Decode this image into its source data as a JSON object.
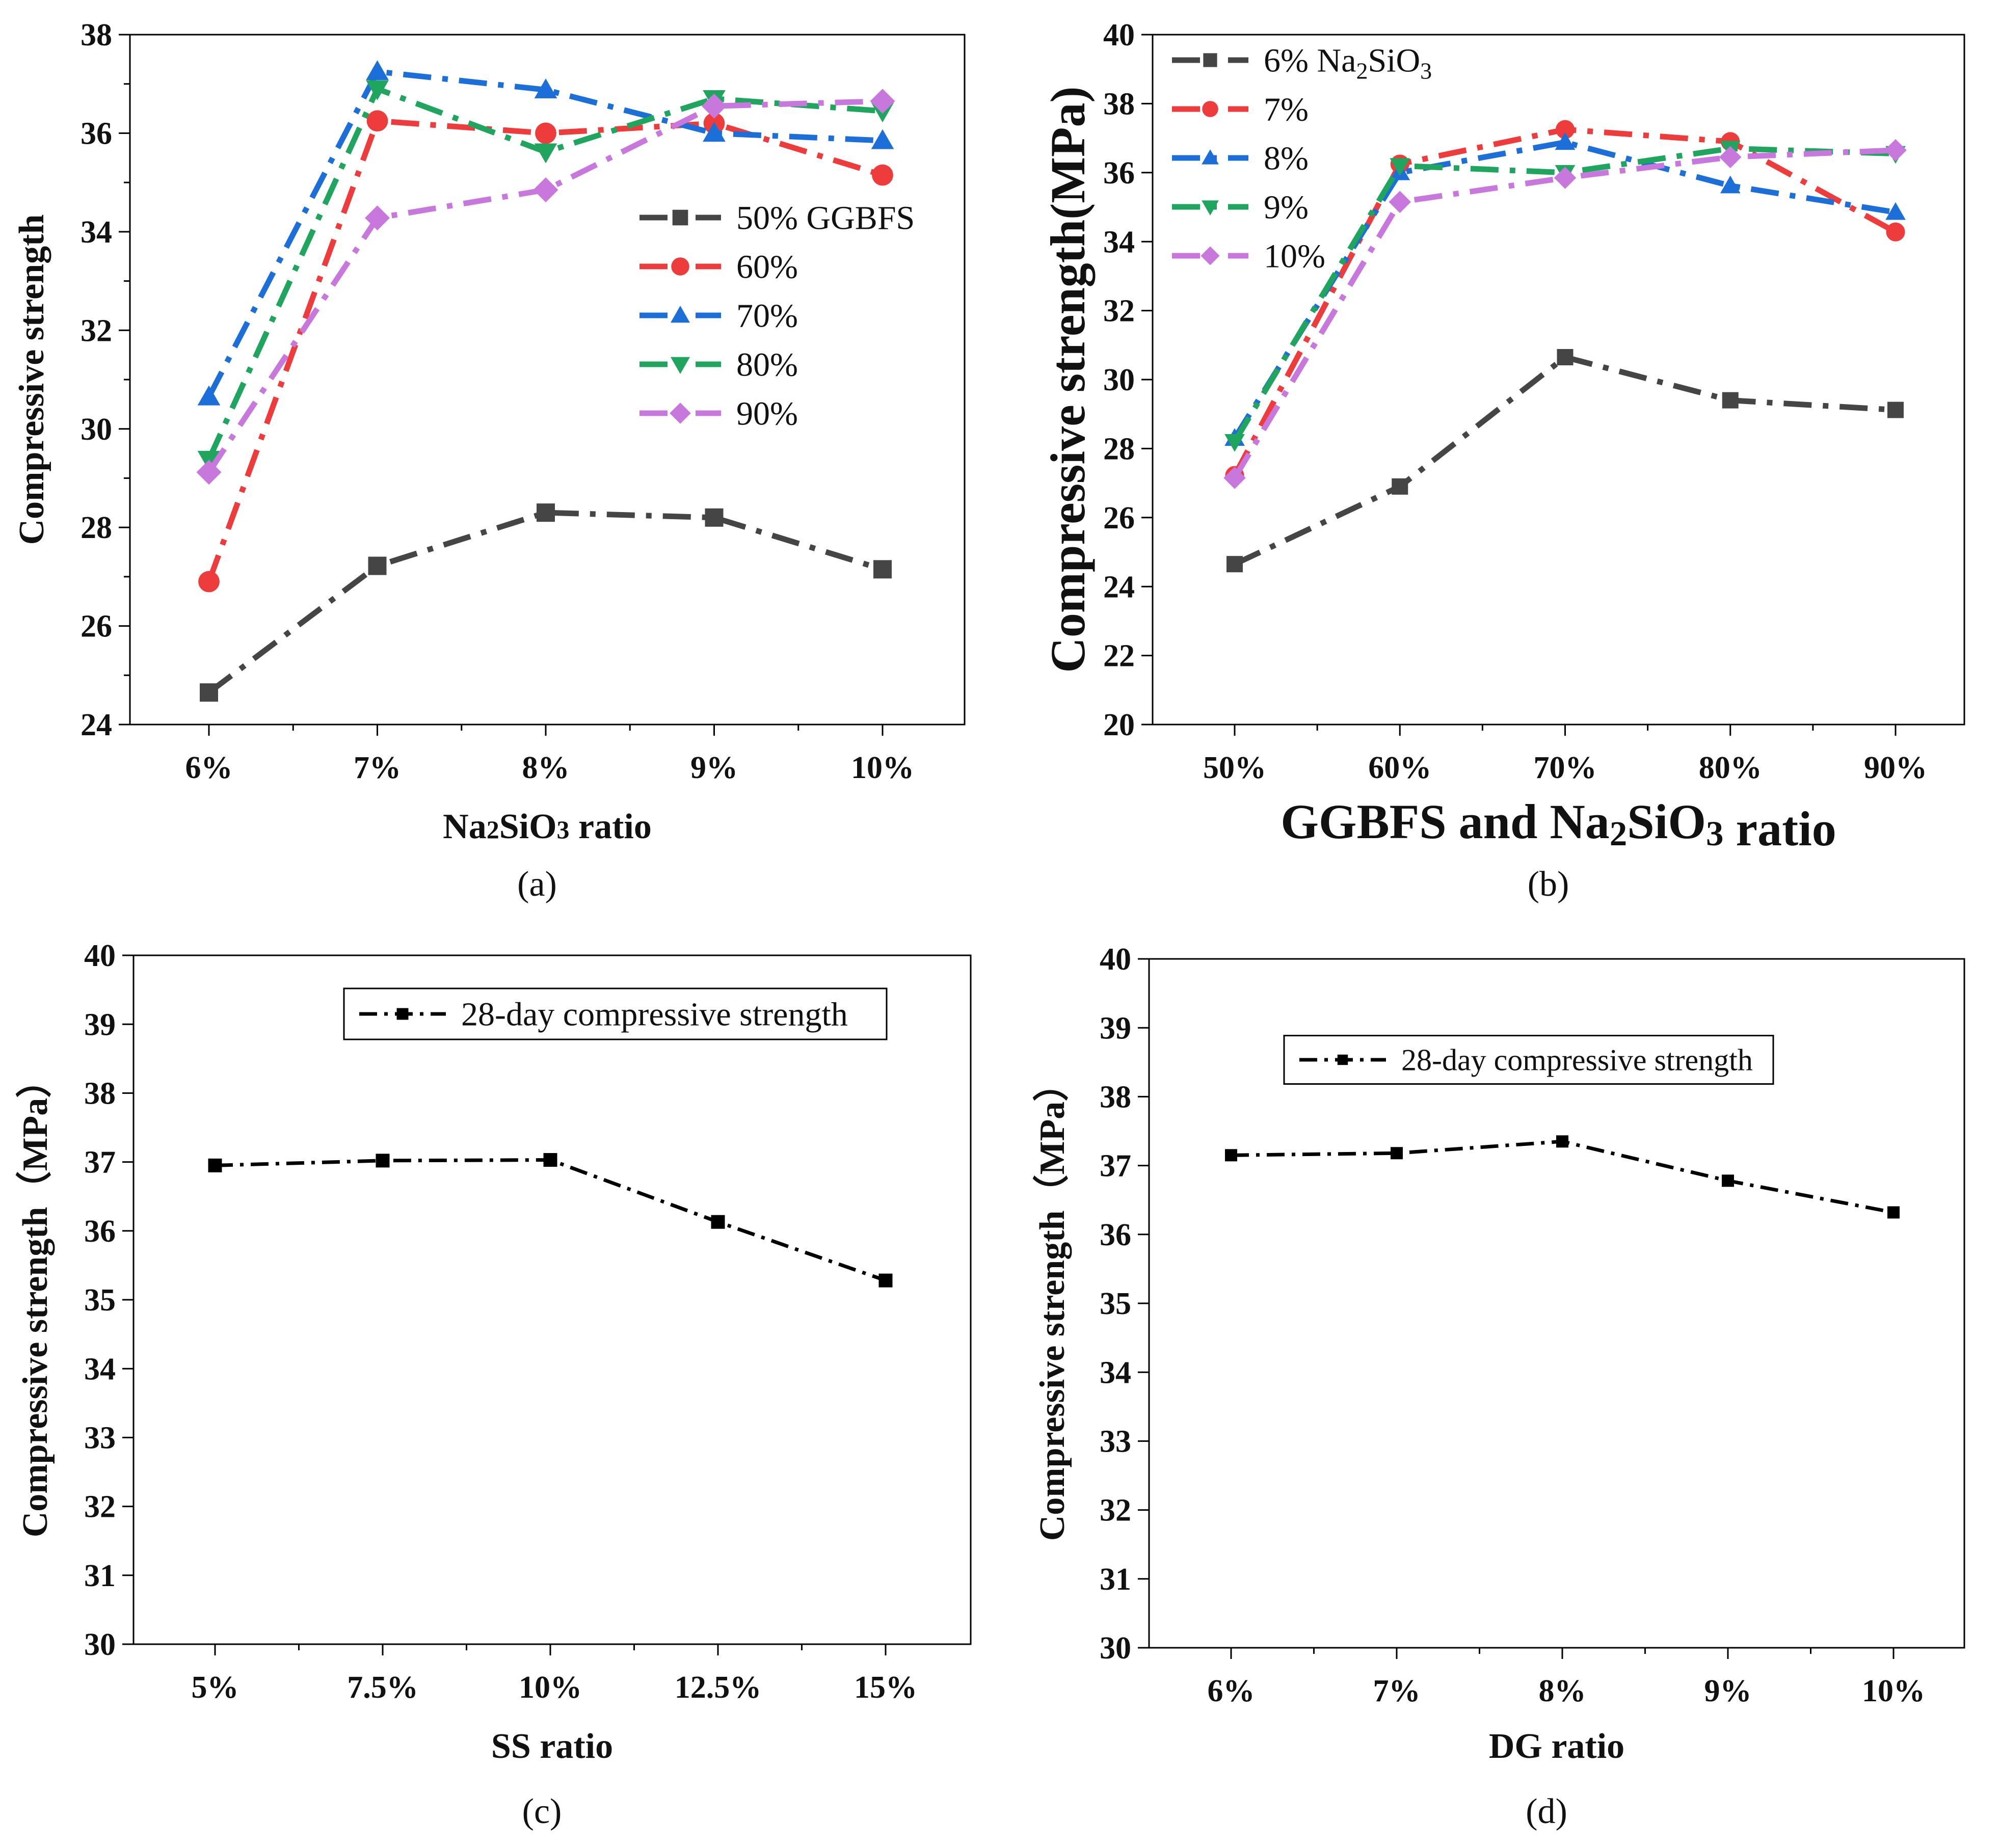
{
  "colors": {
    "s50": "#454545",
    "s60": "#EE3B3B",
    "s70": "#1C6FD8",
    "s80": "#1FA55E",
    "s90": "#C878DC",
    "black": "#000000"
  },
  "chart_data": [
    {
      "id": "a",
      "type": "line",
      "caption": "(a)",
      "title": "",
      "xlabel": "Na2SiO3 ratio",
      "ylabel": "Compressive strength",
      "categories": [
        "6%",
        "7%",
        "8%",
        "9%",
        "10%"
      ],
      "ylim": [
        24,
        38
      ],
      "yticks": [
        24,
        26,
        28,
        30,
        32,
        34,
        36,
        38
      ],
      "legend_position": "center-right",
      "series": [
        {
          "name": "50% GGBFS",
          "marker": "square",
          "color_key": "s50",
          "values": [
            24.65,
            27.22,
            28.3,
            28.2,
            27.15
          ]
        },
        {
          "name": "60%",
          "marker": "circle",
          "color_key": "s60",
          "values": [
            26.9,
            36.25,
            36.0,
            36.2,
            35.15
          ]
        },
        {
          "name": "70%",
          "marker": "triangle-up",
          "color_key": "s70",
          "values": [
            30.65,
            37.25,
            36.88,
            36.0,
            35.85
          ]
        },
        {
          "name": "80%",
          "marker": "triangle-down",
          "color_key": "s80",
          "values": [
            29.38,
            36.9,
            35.62,
            36.7,
            36.45
          ]
        },
        {
          "name": "90%",
          "marker": "diamond",
          "color_key": "s90",
          "values": [
            29.12,
            34.28,
            34.85,
            36.55,
            36.65
          ]
        }
      ]
    },
    {
      "id": "b",
      "type": "line",
      "caption": "(b)",
      "title": "",
      "xlabel": "GGBFS and Na2SiO3 ratio",
      "ylabel": "Compressive strength(MPa)",
      "categories": [
        "50%",
        "60%",
        "70%",
        "80%",
        "90%"
      ],
      "ylim": [
        20,
        40
      ],
      "yticks": [
        20,
        22,
        24,
        26,
        28,
        30,
        32,
        34,
        36,
        38,
        40
      ],
      "legend_position": "top-left",
      "series": [
        {
          "name": "6% Na2SiO3",
          "marker": "square",
          "color_key": "s50",
          "values": [
            24.65,
            26.9,
            30.65,
            29.4,
            29.12
          ]
        },
        {
          "name": "7%",
          "marker": "circle",
          "color_key": "s60",
          "values": [
            27.22,
            36.25,
            37.25,
            36.9,
            34.28
          ]
        },
        {
          "name": "8%",
          "marker": "triangle-up",
          "color_key": "s70",
          "values": [
            28.3,
            36.0,
            36.88,
            35.62,
            34.85
          ]
        },
        {
          "name": "9%",
          "marker": "triangle-down",
          "color_key": "s80",
          "values": [
            28.2,
            36.2,
            36.0,
            36.7,
            36.55
          ]
        },
        {
          "name": "10%",
          "marker": "diamond",
          "color_key": "s90",
          "values": [
            27.15,
            35.15,
            35.85,
            36.45,
            36.65
          ]
        }
      ]
    },
    {
      "id": "c",
      "type": "line",
      "caption": "(c)",
      "title": "",
      "xlabel": "SS ratio",
      "ylabel": "Compressive strength（MPa）",
      "categories": [
        "5%",
        "7.5%",
        "10%",
        "12.5%",
        "15%"
      ],
      "ylim": [
        30,
        40
      ],
      "yticks": [
        30,
        31,
        32,
        33,
        34,
        35,
        36,
        37,
        38,
        39,
        40
      ],
      "legend_position": "top-right",
      "series": [
        {
          "name": "28-day compressive strength",
          "marker": "square",
          "color_key": "black",
          "values": [
            36.95,
            37.02,
            37.03,
            36.13,
            35.28
          ]
        }
      ]
    },
    {
      "id": "d",
      "type": "line",
      "caption": "(d)",
      "title": "",
      "xlabel": "DG ratio",
      "ylabel": "Compressive strength（MPa）",
      "categories": [
        "6%",
        "7%",
        "8%",
        "9%",
        "10%"
      ],
      "ylim": [
        30,
        40
      ],
      "yticks": [
        30,
        31,
        32,
        33,
        34,
        35,
        36,
        37,
        38,
        39,
        40
      ],
      "legend_position": "top-right",
      "series": [
        {
          "name": "28-day compressive strength",
          "marker": "square",
          "color_key": "black",
          "values": [
            37.15,
            37.18,
            37.35,
            36.78,
            36.32
          ]
        }
      ]
    }
  ]
}
